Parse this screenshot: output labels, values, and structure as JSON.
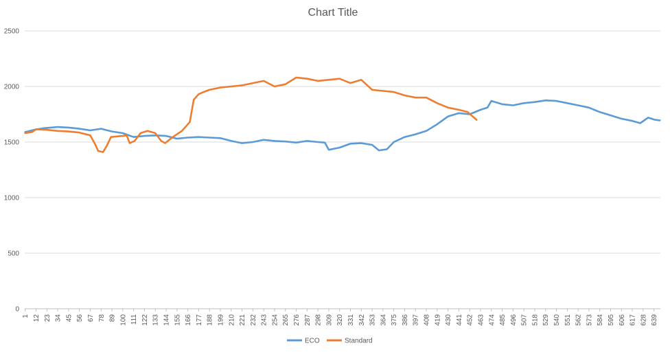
{
  "chart_data": {
    "type": "line",
    "title": "Chart Title",
    "xlabel": "",
    "ylabel": "",
    "ylim": [
      0,
      2500
    ],
    "yticks": [
      0,
      500,
      1000,
      1500,
      2000,
      2500
    ],
    "x_count": 645,
    "xtick_labels": [
      "1",
      "12",
      "23",
      "34",
      "45",
      "56",
      "67",
      "78",
      "89",
      "100",
      "111",
      "122",
      "133",
      "144",
      "155",
      "166",
      "177",
      "188",
      "199",
      "210",
      "221",
      "232",
      "243",
      "254",
      "265",
      "276",
      "287",
      "298",
      "309",
      "320",
      "331",
      "342",
      "353",
      "364",
      "375",
      "386",
      "397",
      "408",
      "419",
      "430",
      "441",
      "452",
      "463",
      "474",
      "485",
      "496",
      "507",
      "518",
      "529",
      "540",
      "551",
      "562",
      "573",
      "584",
      "595",
      "606",
      "617",
      "628",
      "639"
    ],
    "grid": true,
    "legend_position": "bottom",
    "series": [
      {
        "name": "ECO",
        "color": "#5b9bd5",
        "points": [
          [
            1,
            1590
          ],
          [
            10,
            1610
          ],
          [
            20,
            1625
          ],
          [
            34,
            1635
          ],
          [
            45,
            1630
          ],
          [
            56,
            1620
          ],
          [
            67,
            1605
          ],
          [
            78,
            1620
          ],
          [
            89,
            1595
          ],
          [
            100,
            1580
          ],
          [
            111,
            1545
          ],
          [
            122,
            1555
          ],
          [
            133,
            1560
          ],
          [
            144,
            1555
          ],
          [
            155,
            1530
          ],
          [
            166,
            1540
          ],
          [
            177,
            1545
          ],
          [
            188,
            1540
          ],
          [
            199,
            1535
          ],
          [
            210,
            1510
          ],
          [
            221,
            1490
          ],
          [
            232,
            1500
          ],
          [
            243,
            1520
          ],
          [
            254,
            1510
          ],
          [
            265,
            1505
          ],
          [
            276,
            1495
          ],
          [
            287,
            1510
          ],
          [
            298,
            1500
          ],
          [
            305,
            1495
          ],
          [
            309,
            1430
          ],
          [
            320,
            1450
          ],
          [
            331,
            1485
          ],
          [
            342,
            1490
          ],
          [
            353,
            1475
          ],
          [
            360,
            1425
          ],
          [
            368,
            1435
          ],
          [
            375,
            1500
          ],
          [
            386,
            1545
          ],
          [
            397,
            1570
          ],
          [
            408,
            1600
          ],
          [
            419,
            1660
          ],
          [
            430,
            1730
          ],
          [
            441,
            1760
          ],
          [
            452,
            1750
          ],
          [
            463,
            1790
          ],
          [
            470,
            1810
          ],
          [
            474,
            1870
          ],
          [
            485,
            1840
          ],
          [
            496,
            1830
          ],
          [
            507,
            1850
          ],
          [
            518,
            1860
          ],
          [
            529,
            1875
          ],
          [
            540,
            1870
          ],
          [
            551,
            1850
          ],
          [
            562,
            1830
          ],
          [
            573,
            1810
          ],
          [
            584,
            1770
          ],
          [
            595,
            1740
          ],
          [
            606,
            1710
          ],
          [
            617,
            1690
          ],
          [
            625,
            1670
          ],
          [
            633,
            1720
          ],
          [
            640,
            1700
          ],
          [
            645,
            1695
          ]
        ]
      },
      {
        "name": "Standard",
        "color": "#ed7d31",
        "points": [
          [
            1,
            1580
          ],
          [
            8,
            1590
          ],
          [
            12,
            1615
          ],
          [
            23,
            1610
          ],
          [
            34,
            1600
          ],
          [
            45,
            1595
          ],
          [
            56,
            1585
          ],
          [
            67,
            1560
          ],
          [
            72,
            1480
          ],
          [
            75,
            1420
          ],
          [
            80,
            1410
          ],
          [
            84,
            1470
          ],
          [
            88,
            1545
          ],
          [
            100,
            1555
          ],
          [
            104,
            1560
          ],
          [
            107,
            1490
          ],
          [
            112,
            1510
          ],
          [
            118,
            1580
          ],
          [
            125,
            1600
          ],
          [
            133,
            1580
          ],
          [
            139,
            1510
          ],
          [
            143,
            1490
          ],
          [
            150,
            1540
          ],
          [
            160,
            1600
          ],
          [
            168,
            1680
          ],
          [
            172,
            1880
          ],
          [
            177,
            1930
          ],
          [
            182,
            1950
          ],
          [
            188,
            1970
          ],
          [
            199,
            1990
          ],
          [
            210,
            2000
          ],
          [
            221,
            2010
          ],
          [
            232,
            2030
          ],
          [
            243,
            2050
          ],
          [
            254,
            2000
          ],
          [
            265,
            2020
          ],
          [
            276,
            2080
          ],
          [
            287,
            2070
          ],
          [
            298,
            2050
          ],
          [
            309,
            2060
          ],
          [
            320,
            2070
          ],
          [
            331,
            2030
          ],
          [
            342,
            2060
          ],
          [
            353,
            1970
          ],
          [
            364,
            1960
          ],
          [
            375,
            1950
          ],
          [
            386,
            1920
          ],
          [
            397,
            1900
          ],
          [
            408,
            1900
          ],
          [
            419,
            1850
          ],
          [
            430,
            1810
          ],
          [
            441,
            1790
          ],
          [
            450,
            1770
          ],
          [
            455,
            1730
          ],
          [
            459,
            1700
          ]
        ]
      }
    ]
  }
}
